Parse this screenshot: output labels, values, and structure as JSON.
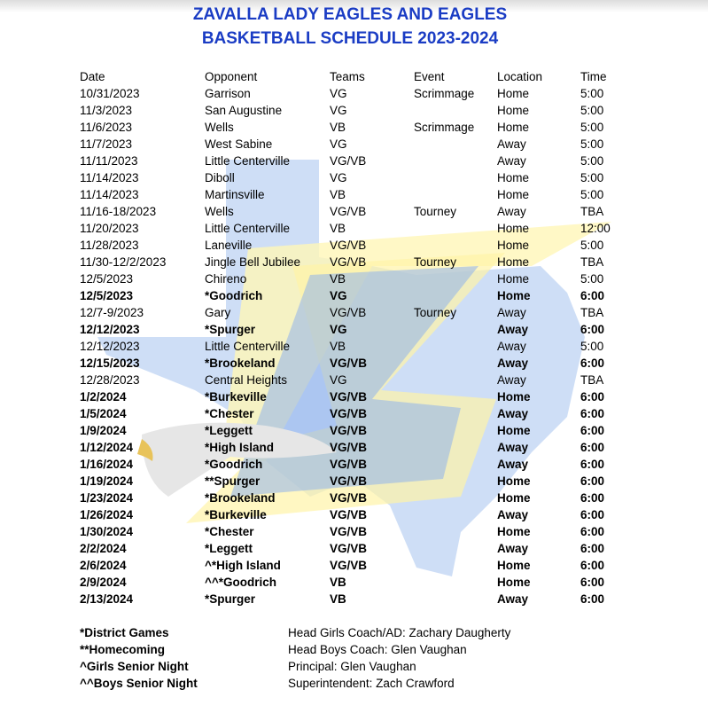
{
  "header": {
    "title_lines": [
      "ZAVALLA LADY EAGLES AND EAGLES",
      "BASKETBALL SCHEDULE 2023-2024"
    ]
  },
  "table": {
    "columns": [
      "Date",
      "Opponent",
      "Teams",
      "Event",
      "Location",
      "Time"
    ],
    "rows": [
      {
        "cells": [
          "10/31/2023",
          "Garrison",
          "VG",
          "Scrimmage",
          "Home",
          "5:00"
        ],
        "bold": false
      },
      {
        "cells": [
          "11/3/2023",
          "San Augustine",
          "VG",
          null,
          "Home",
          "5:00"
        ],
        "bold": false
      },
      {
        "cells": [
          "11/6/2023",
          "Wells",
          "VB",
          "Scrimmage",
          "Home",
          "5:00"
        ],
        "bold": false
      },
      {
        "cells": [
          "11/7/2023",
          "West Sabine",
          "VG",
          null,
          "Away",
          "5:00"
        ],
        "bold": false
      },
      {
        "cells": [
          "11/11/2023",
          "Little Centerville",
          "VG/VB",
          null,
          "Away",
          "5:00"
        ],
        "bold": false
      },
      {
        "cells": [
          "11/14/2023",
          "Diboll",
          "VG",
          null,
          "Home",
          "5:00"
        ],
        "bold": false
      },
      {
        "cells": [
          "11/14/2023",
          "Martinsville",
          "VB",
          null,
          "Home",
          "5:00"
        ],
        "bold": false
      },
      {
        "cells": [
          "11/16-18/2023",
          "Wells",
          "VG/VB",
          "Tourney",
          "Away",
          "TBA"
        ],
        "bold": false
      },
      {
        "cells": [
          "11/20/2023",
          "Little Centerville",
          "VB",
          null,
          "Home",
          "12:00"
        ],
        "bold": false
      },
      {
        "cells": [
          "11/28/2023",
          "Laneville",
          "VG/VB",
          null,
          "Home",
          "5:00"
        ],
        "bold": false
      },
      {
        "cells": [
          "11/30-12/2/2023",
          "Jingle Bell Jubilee",
          "VG/VB",
          "Tourney",
          "Home",
          "TBA"
        ],
        "bold": false
      },
      {
        "cells": [
          "12/5/2023",
          "Chireno",
          "VB",
          null,
          "Home",
          "5:00"
        ],
        "bold": false
      },
      {
        "cells": [
          "12/5/2023",
          "*Goodrich",
          "VG",
          null,
          "Home",
          "6:00"
        ],
        "bold": true
      },
      {
        "cells": [
          "12/7-9/2023",
          "Gary",
          "VG/VB",
          "Tourney",
          "Away",
          "TBA"
        ],
        "bold": false
      },
      {
        "cells": [
          "12/12/2023",
          "*Spurger",
          "VG",
          null,
          "Away",
          "6:00"
        ],
        "bold": true
      },
      {
        "cells": [
          "12/12/2023",
          "Little Centerville",
          "VB",
          null,
          "Away",
          "5:00"
        ],
        "bold": false
      },
      {
        "cells": [
          "12/15/2023",
          "*Brookeland",
          "VG/VB",
          null,
          "Away",
          "6:00"
        ],
        "bold": true
      },
      {
        "cells": [
          "12/28/2023",
          "Central Heights",
          "VG",
          null,
          "Away",
          "TBA"
        ],
        "bold": false
      },
      {
        "cells": [
          "1/2/2024",
          "*Burkeville",
          "VG/VB",
          null,
          "Home",
          "6:00"
        ],
        "bold": true
      },
      {
        "cells": [
          "1/5/2024",
          "*Chester",
          "VG/VB",
          null,
          "Away",
          "6:00"
        ],
        "bold": true
      },
      {
        "cells": [
          "1/9/2024",
          "*Leggett",
          "VG/VB",
          null,
          "Home",
          "6:00"
        ],
        "bold": true
      },
      {
        "cells": [
          "1/12/2024",
          "*High Island",
          "VG/VB",
          null,
          "Away",
          "6:00"
        ],
        "bold": true
      },
      {
        "cells": [
          "1/16/2024",
          "*Goodrich",
          "VG/VB",
          null,
          "Away",
          "6:00"
        ],
        "bold": true
      },
      {
        "cells": [
          "1/19/2024",
          "**Spurger",
          "VG/VB",
          null,
          "Home",
          "6:00"
        ],
        "bold": true
      },
      {
        "cells": [
          "1/23/2024",
          "*Brookeland",
          "VG/VB",
          null,
          "Home",
          "6:00"
        ],
        "bold": true
      },
      {
        "cells": [
          "1/26/2024",
          "*Burkeville",
          "VG/VB",
          null,
          "Away",
          "6:00"
        ],
        "bold": true
      },
      {
        "cells": [
          "1/30/2024",
          "*Chester",
          "VG/VB",
          null,
          "Home",
          "6:00"
        ],
        "bold": true
      },
      {
        "cells": [
          "2/2/2024",
          "*Leggett",
          "VG/VB",
          null,
          "Away",
          "6:00"
        ],
        "bold": true
      },
      {
        "cells": [
          "2/6/2024",
          "^*High Island",
          "VG/VB",
          null,
          "Home",
          "6:00"
        ],
        "bold": true
      },
      {
        "cells": [
          "2/9/2024",
          "^^*Goodrich",
          "VB",
          null,
          "Home",
          "6:00"
        ],
        "bold": true
      },
      {
        "cells": [
          "2/13/2024",
          "*Spurger",
          "VB",
          null,
          "Away",
          "6:00"
        ],
        "bold": true
      }
    ]
  },
  "legend": [
    "*District Games",
    "**Homecoming",
    "^Girls Senior Night",
    "^^Boys Senior Night"
  ],
  "staff": [
    "Head Girls Coach/AD: Zachary Daugherty",
    "Head Boys Coach: Glen Vaughan",
    "Principal: Glen Vaughan",
    "Superintendent: Zach Crawford"
  ]
}
